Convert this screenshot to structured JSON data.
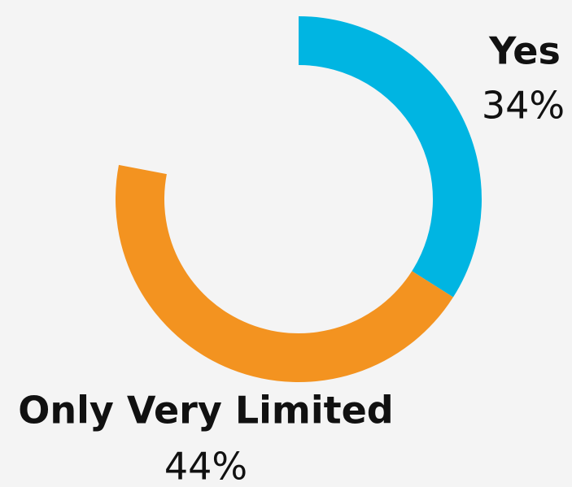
{
  "chart_data": {
    "type": "donut",
    "categories": [
      "Yes",
      "Only Very Limited"
    ],
    "values": [
      34,
      44
    ],
    "value_labels": [
      "34%",
      "44%"
    ],
    "colors": [
      "#00b5e2",
      "#f39320"
    ]
  }
}
